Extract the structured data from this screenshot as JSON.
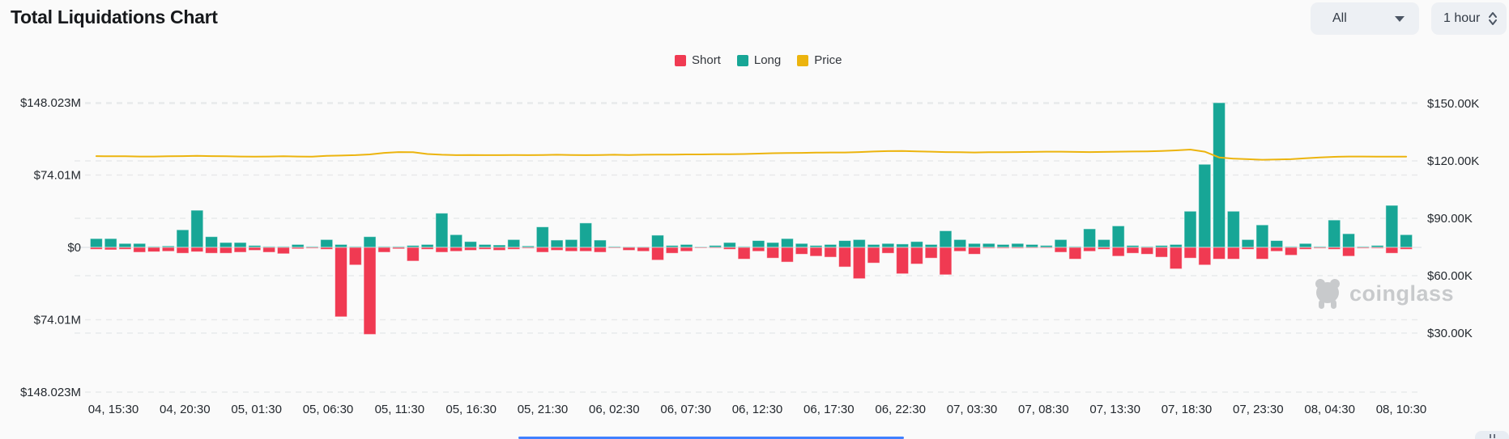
{
  "header": {
    "title": "Total Liquidations Chart",
    "symbol_dropdown": {
      "value": "All"
    },
    "interval_dropdown": {
      "value": "1 hour"
    }
  },
  "legend": {
    "items": [
      {
        "label": "Short",
        "color": "#f03a52"
      },
      {
        "label": "Long",
        "color": "#17a696"
      },
      {
        "label": "Price",
        "color": "#ecb40e"
      }
    ]
  },
  "watermark": {
    "text": "coinglass"
  },
  "chart_data": {
    "type": "bar",
    "title": "Total Liquidations Chart",
    "grid": "dashed-horizontal",
    "legend_position": "top-center",
    "x_tick_labels": [
      "04, 15:30",
      "04, 20:30",
      "05, 01:30",
      "05, 06:30",
      "05, 11:30",
      "05, 16:30",
      "05, 21:30",
      "06, 02:30",
      "06, 07:30",
      "06, 12:30",
      "06, 17:30",
      "06, 22:30",
      "07, 03:30",
      "07, 08:30",
      "07, 13:30",
      "07, 18:30",
      "07, 23:30",
      "08, 04:30",
      "08, 10:30"
    ],
    "y_axis_left": {
      "labels": [
        "$148.023M",
        "$74.01M",
        "$0",
        "$74.01M",
        "$148.023M"
      ],
      "tick_values_m": [
        148.023,
        74.01,
        0,
        -74.01,
        -148.023
      ],
      "range_m": [
        -148.023,
        148.023
      ]
    },
    "y_axis_right": {
      "labels": [
        "$150.00K",
        "$120.00K",
        "$90.00K",
        "$60.00K",
        "$30.00K"
      ],
      "tick_values_k": [
        150,
        120,
        90,
        60,
        30
      ],
      "range_k": [
        15,
        165
      ]
    },
    "series": [
      {
        "name": "Long",
        "type": "bar",
        "axis": "left",
        "unit": "$M",
        "color": "#17a696",
        "values": [
          9,
          9,
          4,
          4,
          1,
          1.5,
          18,
          38,
          11,
          5,
          5,
          2,
          1,
          1,
          3,
          1,
          8,
          3,
          1,
          11,
          1,
          1,
          2,
          3,
          35,
          13,
          6,
          3,
          2.5,
          8,
          1.5,
          21,
          7.5,
          8,
          25,
          7.5,
          1,
          0.5,
          0.5,
          12.5,
          2,
          3,
          0.5,
          2,
          5,
          1,
          7,
          5,
          9,
          4,
          2,
          3,
          7,
          8,
          3,
          4,
          3.5,
          6,
          3,
          17,
          8,
          4,
          4,
          3,
          4,
          3,
          2,
          8,
          1,
          19,
          8,
          22,
          2,
          1,
          2,
          3,
          37,
          85,
          148,
          37,
          8,
          23,
          7,
          1,
          4,
          1,
          28,
          14,
          1,
          2,
          43,
          13
        ]
      },
      {
        "name": "Short",
        "type": "bar",
        "axis": "left",
        "unit": "$M",
        "color": "#f03a52",
        "values": [
          -2,
          -2.5,
          -2,
          -5,
          -4.5,
          -4,
          -6,
          -4.5,
          -6,
          -6,
          -5,
          -3,
          -5,
          -6.5,
          -1.5,
          -1,
          -2,
          -71,
          -18,
          -89,
          -5,
          -1.5,
          -14,
          -2,
          -5,
          -4,
          -3,
          -2,
          -3,
          -2,
          -1,
          -5,
          -3,
          -4,
          -4,
          -5,
          -0.5,
          -3,
          -4,
          -13,
          -6,
          -4,
          -0.5,
          -0.5,
          -2,
          -12,
          -4,
          -11,
          -15,
          -7,
          -9,
          -10,
          -20,
          -32,
          -16,
          -6,
          -27,
          -17,
          -11,
          -28,
          -4,
          -7,
          -1,
          -1,
          -1,
          -0.5,
          -0.3,
          -5,
          -12,
          -4,
          -2,
          -9,
          -6,
          -7,
          -10,
          -22,
          -11,
          -18,
          -12,
          -12,
          -2,
          -12,
          -4,
          -8,
          -2,
          -1,
          -2,
          -9,
          -1,
          -1,
          -6,
          -2
        ]
      },
      {
        "name": "Price",
        "type": "line",
        "axis": "right",
        "unit": "$K",
        "color": "#ecb40e",
        "values": [
          122.5,
          122.4,
          122.4,
          122.3,
          122.3,
          122.4,
          122.5,
          122.6,
          122.5,
          122.4,
          122.3,
          122.2,
          122.3,
          122.4,
          122.3,
          122.2,
          122.6,
          122.8,
          123.0,
          123.4,
          124.2,
          124.6,
          124.5,
          123.6,
          123.2,
          123.0,
          123.1,
          123.0,
          123.0,
          123.1,
          123.0,
          123.1,
          123.2,
          123.1,
          123.0,
          123.1,
          123.2,
          123.1,
          123.2,
          123.3,
          123.3,
          123.4,
          123.4,
          123.5,
          123.5,
          123.6,
          123.8,
          124.0,
          124.1,
          124.2,
          124.3,
          124.4,
          124.4,
          124.6,
          124.9,
          125.1,
          125.2,
          125.0,
          124.8,
          124.6,
          124.5,
          124.4,
          124.5,
          124.5,
          124.6,
          124.7,
          124.8,
          124.8,
          124.7,
          124.6,
          124.7,
          124.8,
          124.9,
          125.0,
          125.2,
          125.5,
          125.9,
          124.8,
          121.8,
          121.2,
          120.9,
          120.6,
          120.7,
          120.9,
          121.4,
          121.8,
          122.1,
          122.3,
          122.3,
          122.2,
          122.2,
          122.2
        ]
      }
    ]
  }
}
